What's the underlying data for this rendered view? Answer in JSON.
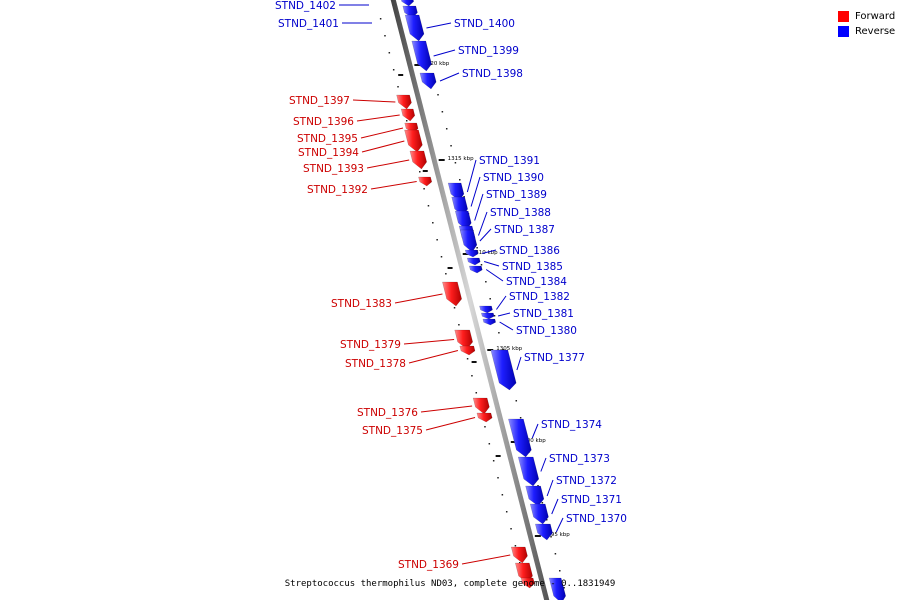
{
  "legend": {
    "forward_label": "Forward",
    "reverse_label": "Reverse",
    "forward_color": "#ff0000",
    "reverse_color": "#0000ff"
  },
  "caption": "Streptococcus thermophilus ND03, complete genome - 0..1831949",
  "scale_labels": [
    "1320 kbp",
    "1315 kbp",
    "1310 kbp",
    "1305 kbp",
    "1300 kbp",
    "1295 kbp"
  ],
  "reverse_genes": [
    "STND_1402",
    "STND_1401",
    "STND_1400",
    "STND_1399",
    "STND_1398",
    "STND_1391",
    "STND_1390",
    "STND_1389",
    "STND_1388",
    "STND_1387",
    "STND_1386",
    "STND_1385",
    "STND_1384",
    "STND_1382",
    "STND_1381",
    "STND_1380",
    "STND_1377",
    "STND_1374",
    "STND_1373",
    "STND_1372",
    "STND_1371",
    "STND_1370"
  ],
  "forward_genes": [
    "STND_1397",
    "STND_1396",
    "STND_1395",
    "STND_1394",
    "STND_1393",
    "STND_1392",
    "STND_1383",
    "STND_1379",
    "STND_1378",
    "STND_1376",
    "STND_1375",
    "STND_1369"
  ]
}
